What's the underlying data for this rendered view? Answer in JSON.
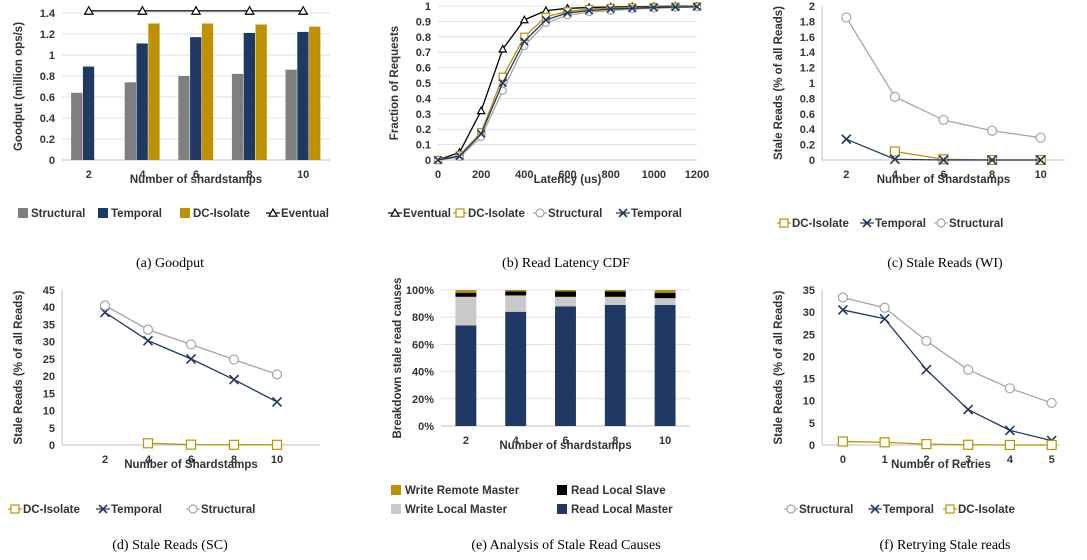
{
  "colors": {
    "structural": "#7f7f7f",
    "structural_line": "#a5a5a5",
    "temporal": "#1f3864",
    "dc_isolate": "#bf9000",
    "eventual": "#000000",
    "write_remote_master": "#bf9000",
    "read_local_slave": "#000000",
    "write_local_master": "#c9c9c9",
    "read_local_master": "#1f3864",
    "grid": "#d9d9d9",
    "axis": "#bfbfbf"
  },
  "chart_data": [
    {
      "type": "bar",
      "caption": "(a) Goodput",
      "xlabel": "Number of shardstamps",
      "ylabel": "Goodput (million ops/s)",
      "categories": [
        "2",
        "4",
        "6",
        "8",
        "10"
      ],
      "ylim": [
        0,
        1.4
      ],
      "yticks": [
        "0",
        "0.2",
        "0.4",
        "0.6",
        "0.8",
        "1",
        "1.2",
        "1.4"
      ],
      "grid": true,
      "legend_position": "bottom",
      "series": [
        {
          "name": "Structural",
          "kind": "bar",
          "values": [
            0.64,
            0.74,
            0.8,
            0.82,
            0.86
          ]
        },
        {
          "name": "Temporal",
          "kind": "bar",
          "values": [
            0.89,
            1.11,
            1.17,
            1.21,
            1.22
          ]
        },
        {
          "name": "DC-Isolate",
          "kind": "bar",
          "values": [
            null,
            1.3,
            1.3,
            1.29,
            1.27
          ]
        },
        {
          "name": "Eventual",
          "kind": "line",
          "marker": "triangle",
          "values": [
            1.42,
            1.42,
            1.42,
            1.42,
            1.42
          ]
        }
      ]
    },
    {
      "type": "line",
      "caption": "(b) Read Latency CDF",
      "xlabel": "Latency (us)",
      "ylabel": "Fraction of Requests",
      "xlim": [
        0,
        1200
      ],
      "ylim": [
        0,
        1
      ],
      "xticks": [
        "0",
        "200",
        "400",
        "600",
        "800",
        "1000",
        "1200"
      ],
      "yticks": [
        "0",
        "0.1",
        "0.2",
        "0.3",
        "0.4",
        "0.5",
        "0.6",
        "0.7",
        "0.8",
        "0.9",
        "1"
      ],
      "grid": true,
      "legend_position": "bottom",
      "series": [
        {
          "name": "Eventual",
          "marker": "triangle",
          "x": [
            0,
            100,
            200,
            300,
            400,
            500,
            600,
            700,
            800,
            900,
            1000,
            1100,
            1200
          ],
          "y": [
            0,
            0.05,
            0.32,
            0.72,
            0.91,
            0.97,
            0.985,
            0.99,
            0.993,
            0.995,
            0.997,
            0.998,
            0.999
          ]
        },
        {
          "name": "DC-Isolate",
          "marker": "square",
          "x": [
            0,
            100,
            200,
            300,
            400,
            500,
            600,
            700,
            800,
            900,
            1000,
            1100,
            1200
          ],
          "y": [
            0,
            0.03,
            0.18,
            0.54,
            0.8,
            0.93,
            0.965,
            0.98,
            0.987,
            0.99,
            0.993,
            0.995,
            0.997
          ]
        },
        {
          "name": "Structural",
          "marker": "circle",
          "x": [
            0,
            100,
            200,
            300,
            400,
            500,
            600,
            700,
            800,
            900,
            1000,
            1100,
            1200
          ],
          "y": [
            0,
            0.02,
            0.15,
            0.45,
            0.74,
            0.89,
            0.94,
            0.96,
            0.97,
            0.98,
            0.985,
            0.99,
            0.993
          ]
        },
        {
          "name": "Temporal",
          "marker": "x",
          "x": [
            0,
            100,
            200,
            300,
            400,
            500,
            600,
            700,
            800,
            900,
            1000,
            1100,
            1200
          ],
          "y": [
            0,
            0.025,
            0.17,
            0.5,
            0.77,
            0.91,
            0.955,
            0.97,
            0.98,
            0.985,
            0.99,
            0.993,
            0.995
          ]
        }
      ]
    },
    {
      "type": "line",
      "caption": "(c) Stale Reads (WI)",
      "xlabel": "Number of Shardstamps",
      "ylabel": "Stale Reads (% of all Reads)",
      "xlim": [
        1,
        11
      ],
      "xticks": [
        "2",
        "4",
        "6",
        "8",
        "10"
      ],
      "ylim": [
        0,
        2
      ],
      "yticks": [
        "0",
        "0.2",
        "0.4",
        "0.6",
        "0.8",
        "1",
        "1.2",
        "1.4",
        "1.6",
        "1.8",
        "2"
      ],
      "grid": false,
      "legend_position": "bottom",
      "series": [
        {
          "name": "DC-Isolate",
          "marker": "square",
          "x": [
            4,
            6,
            8,
            10
          ],
          "y": [
            0.11,
            0.01,
            0.0,
            0.0
          ]
        },
        {
          "name": "Temporal",
          "marker": "x",
          "x": [
            2,
            4,
            6,
            8,
            10
          ],
          "y": [
            0.27,
            0.01,
            0.0,
            0.0,
            0.0
          ]
        },
        {
          "name": "Structural",
          "marker": "circle",
          "x": [
            2,
            4,
            6,
            8,
            10
          ],
          "y": [
            1.85,
            0.82,
            0.52,
            0.38,
            0.29
          ]
        }
      ]
    },
    {
      "type": "line",
      "caption": "(d) Stale Reads (SC)",
      "xlabel": "Number of Shardstamps",
      "ylabel": "Stale Reads (% of all Reads)",
      "xlim": [
        0,
        12
      ],
      "xticks": [
        "2",
        "4",
        "6",
        "8",
        "10"
      ],
      "ylim": [
        0,
        45
      ],
      "yticks": [
        "0",
        "5",
        "10",
        "15",
        "20",
        "25",
        "30",
        "35",
        "40",
        "45"
      ],
      "grid": false,
      "legend_position": "bottom",
      "series": [
        {
          "name": "DC-Isolate",
          "marker": "square",
          "x": [
            4,
            6,
            8,
            10
          ],
          "y": [
            0.5,
            0.1,
            0.05,
            0.05
          ]
        },
        {
          "name": "Temporal",
          "marker": "x",
          "x": [
            2,
            4,
            6,
            8,
            10
          ],
          "y": [
            38.5,
            30.3,
            25.0,
            19.0,
            12.5
          ]
        },
        {
          "name": "Structural",
          "marker": "circle",
          "x": [
            2,
            4,
            6,
            8,
            10
          ],
          "y": [
            40.5,
            33.5,
            29.2,
            24.8,
            20.5
          ]
        }
      ]
    },
    {
      "type": "bar",
      "stacked": true,
      "caption": "(e) Analysis of Stale Read Causes",
      "xlabel": "Number of shardstamps",
      "ylabel": "Breakdown stale read causes",
      "categories": [
        "2",
        "4",
        "6",
        "8",
        "10"
      ],
      "ylim": [
        0,
        100
      ],
      "yticks": [
        "0%",
        "20%",
        "40%",
        "60%",
        "80%",
        "100%"
      ],
      "grid": true,
      "legend_position": "bottom",
      "legend_order": [
        "Write Remote Master",
        "Read Local Slave",
        "Write Local Master",
        "Read Local Master"
      ],
      "series": [
        {
          "name": "Read Local Master",
          "values": [
            74,
            84,
            88,
            89,
            89
          ]
        },
        {
          "name": "Write Local Master",
          "values": [
            21,
            12,
            7,
            6,
            5
          ]
        },
        {
          "name": "Read Local Slave",
          "values": [
            3,
            3,
            4,
            4,
            4
          ]
        },
        {
          "name": "Write Remote Master",
          "values": [
            2,
            1,
            1,
            1,
            2
          ]
        }
      ]
    },
    {
      "type": "line",
      "caption": "(f) Retrying Stale reads",
      "xlabel": "Number of Retries",
      "ylabel": "Stale Reads (% of all Reads)",
      "xlim": [
        -0.5,
        5.2
      ],
      "xticks": [
        "0",
        "1",
        "2",
        "3",
        "4",
        "5"
      ],
      "ylim": [
        0,
        35
      ],
      "yticks": [
        "0",
        "5",
        "10",
        "15",
        "20",
        "25",
        "30",
        "35"
      ],
      "grid": false,
      "legend_position": "bottom",
      "series": [
        {
          "name": "Structural",
          "marker": "circle",
          "x": [
            0,
            1,
            2,
            3,
            4,
            5
          ],
          "y": [
            33.3,
            31.0,
            23.5,
            17.0,
            12.8,
            9.5
          ]
        },
        {
          "name": "Temporal",
          "marker": "x",
          "x": [
            0,
            1,
            2,
            3,
            4,
            5
          ],
          "y": [
            30.5,
            28.5,
            17.0,
            8.0,
            3.3,
            1.0
          ]
        },
        {
          "name": "DC-Isolate",
          "marker": "square",
          "x": [
            0,
            1,
            2,
            3,
            4,
            5
          ],
          "y": [
            0.8,
            0.6,
            0.2,
            0.05,
            0.0,
            0.0
          ]
        }
      ]
    }
  ]
}
